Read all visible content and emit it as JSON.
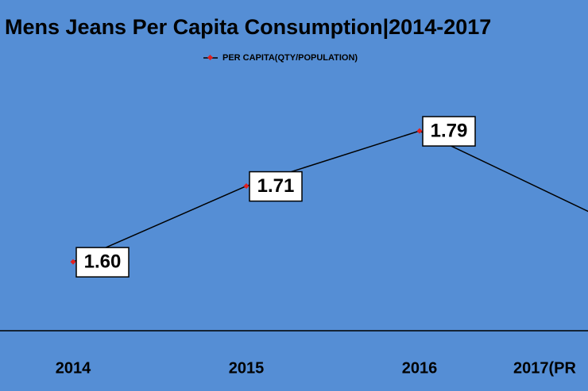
{
  "chart_data": {
    "type": "line",
    "title": "Mens Jeans Per Capita Consumption|2014-2017",
    "categories": [
      "2014",
      "2015",
      "2016",
      "2017(PR"
    ],
    "series": [
      {
        "name": "PER CAPITA(QTY/POPULATION)",
        "color": "#000000",
        "marker_color": "#e02020",
        "values": [
          1.6,
          1.71,
          1.79,
          1.67
        ],
        "value_labels": [
          "1.60",
          "1.71",
          "1.79",
          null
        ]
      }
    ],
    "ylim": [
      1.5,
      1.98
    ],
    "legend": "top"
  }
}
